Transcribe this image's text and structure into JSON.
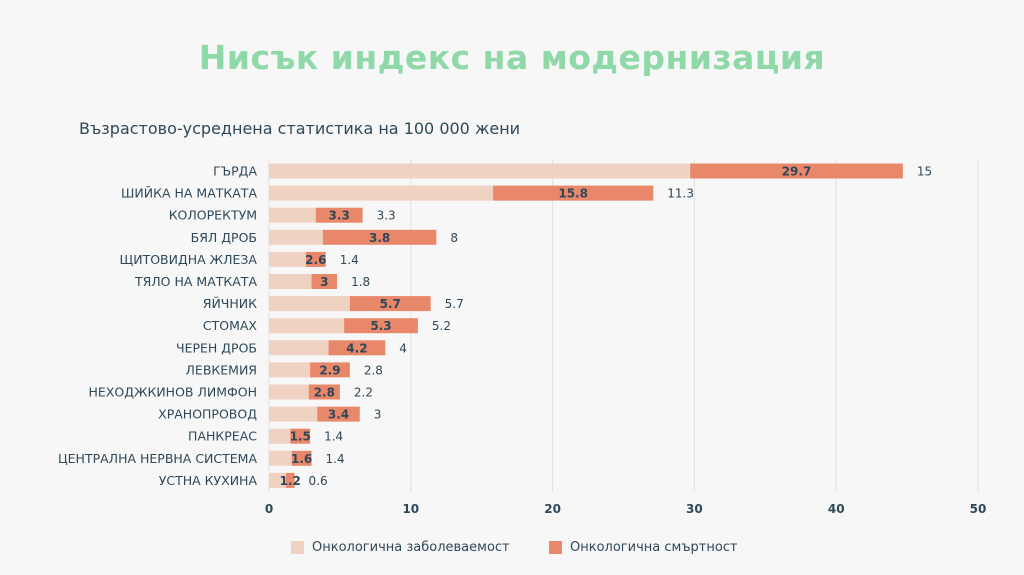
{
  "title": "Нисък индекс на модернизация",
  "subtitle": "Възрастово-усреднена статистика на 100 000 жени",
  "colors": {
    "incidence": "#f0d2c3",
    "mortality": "#e8876a",
    "title": "#8fd9a8",
    "text": "#2f4858",
    "grid": "#e0e0e0"
  },
  "chart_data": {
    "type": "bar",
    "orientation": "horizontal",
    "stacking": "overlay",
    "categories": [
      "ГЪРДА",
      "ШИЙКА  НА МАТКАТА",
      "КОЛОРЕКТУМ",
      "БЯЛ ДРОБ",
      "ЩИТОВИДНА ЖЛЕЗА",
      "ТЯЛО НА МАТКАТА",
      "ЯЙЧНИК",
      "СТОМАХ",
      "ЧЕРЕН ДРОБ",
      "ЛЕВКЕМИЯ",
      "НЕХОДЖКИНОВ ЛИМФОН",
      "ХРАНОПРОВОД",
      "ПАНКРЕАС",
      "ЦЕНТРАЛНА НЕРВНА СИСТЕМА",
      "УСТНА КУХИНА"
    ],
    "series": [
      {
        "name": "Онкологична заболеваемост",
        "values": [
          29.7,
          15.8,
          3.3,
          3.8,
          2.6,
          3,
          5.7,
          5.3,
          4.2,
          2.9,
          2.8,
          3.4,
          1.5,
          1.6,
          1.2
        ],
        "color": "#f0d2c3"
      },
      {
        "name": "Онкологична смъртност",
        "values": [
          15,
          11.3,
          3.3,
          8,
          1.4,
          1.8,
          5.7,
          5.2,
          4,
          2.8,
          2.2,
          3,
          1.4,
          1.4,
          0.6
        ],
        "color": "#e8876a"
      }
    ],
    "xlim": [
      0,
      50
    ],
    "xticks": [
      "0",
      "10",
      "20",
      "30",
      "40",
      "50"
    ],
    "grid": true,
    "legend": "bottom"
  }
}
